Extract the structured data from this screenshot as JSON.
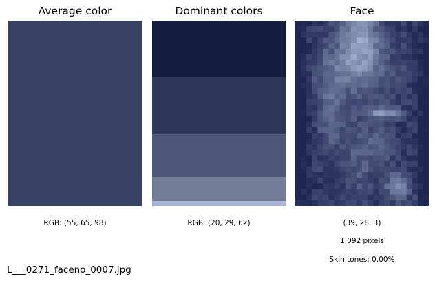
{
  "panels": {
    "average": {
      "title": "Average color",
      "caption": "RGB: (55, 65, 98)",
      "color": "#374162"
    },
    "dominant": {
      "title": "Dominant colors",
      "caption": "RGB: (20, 29, 62)",
      "bands": [
        {
          "color": "#141d3e",
          "share": 0.305
        },
        {
          "color": "#2e3759",
          "share": 0.309
        },
        {
          "color": "#4e5778",
          "share": 0.23
        },
        {
          "color": "#737d98",
          "share": 0.13
        },
        {
          "color": "#aab3d3",
          "share": 0.026
        }
      ]
    },
    "face": {
      "title": "Face",
      "caption_color": "(39, 28, 3)",
      "caption_pixels": "1,092 pixels",
      "caption_skin": "Skin tones: 0.00%",
      "base_color": "#1e2752",
      "highlight_color": "#b8c6e2"
    }
  },
  "filename": "L___0271_faceno_0007.jpg"
}
